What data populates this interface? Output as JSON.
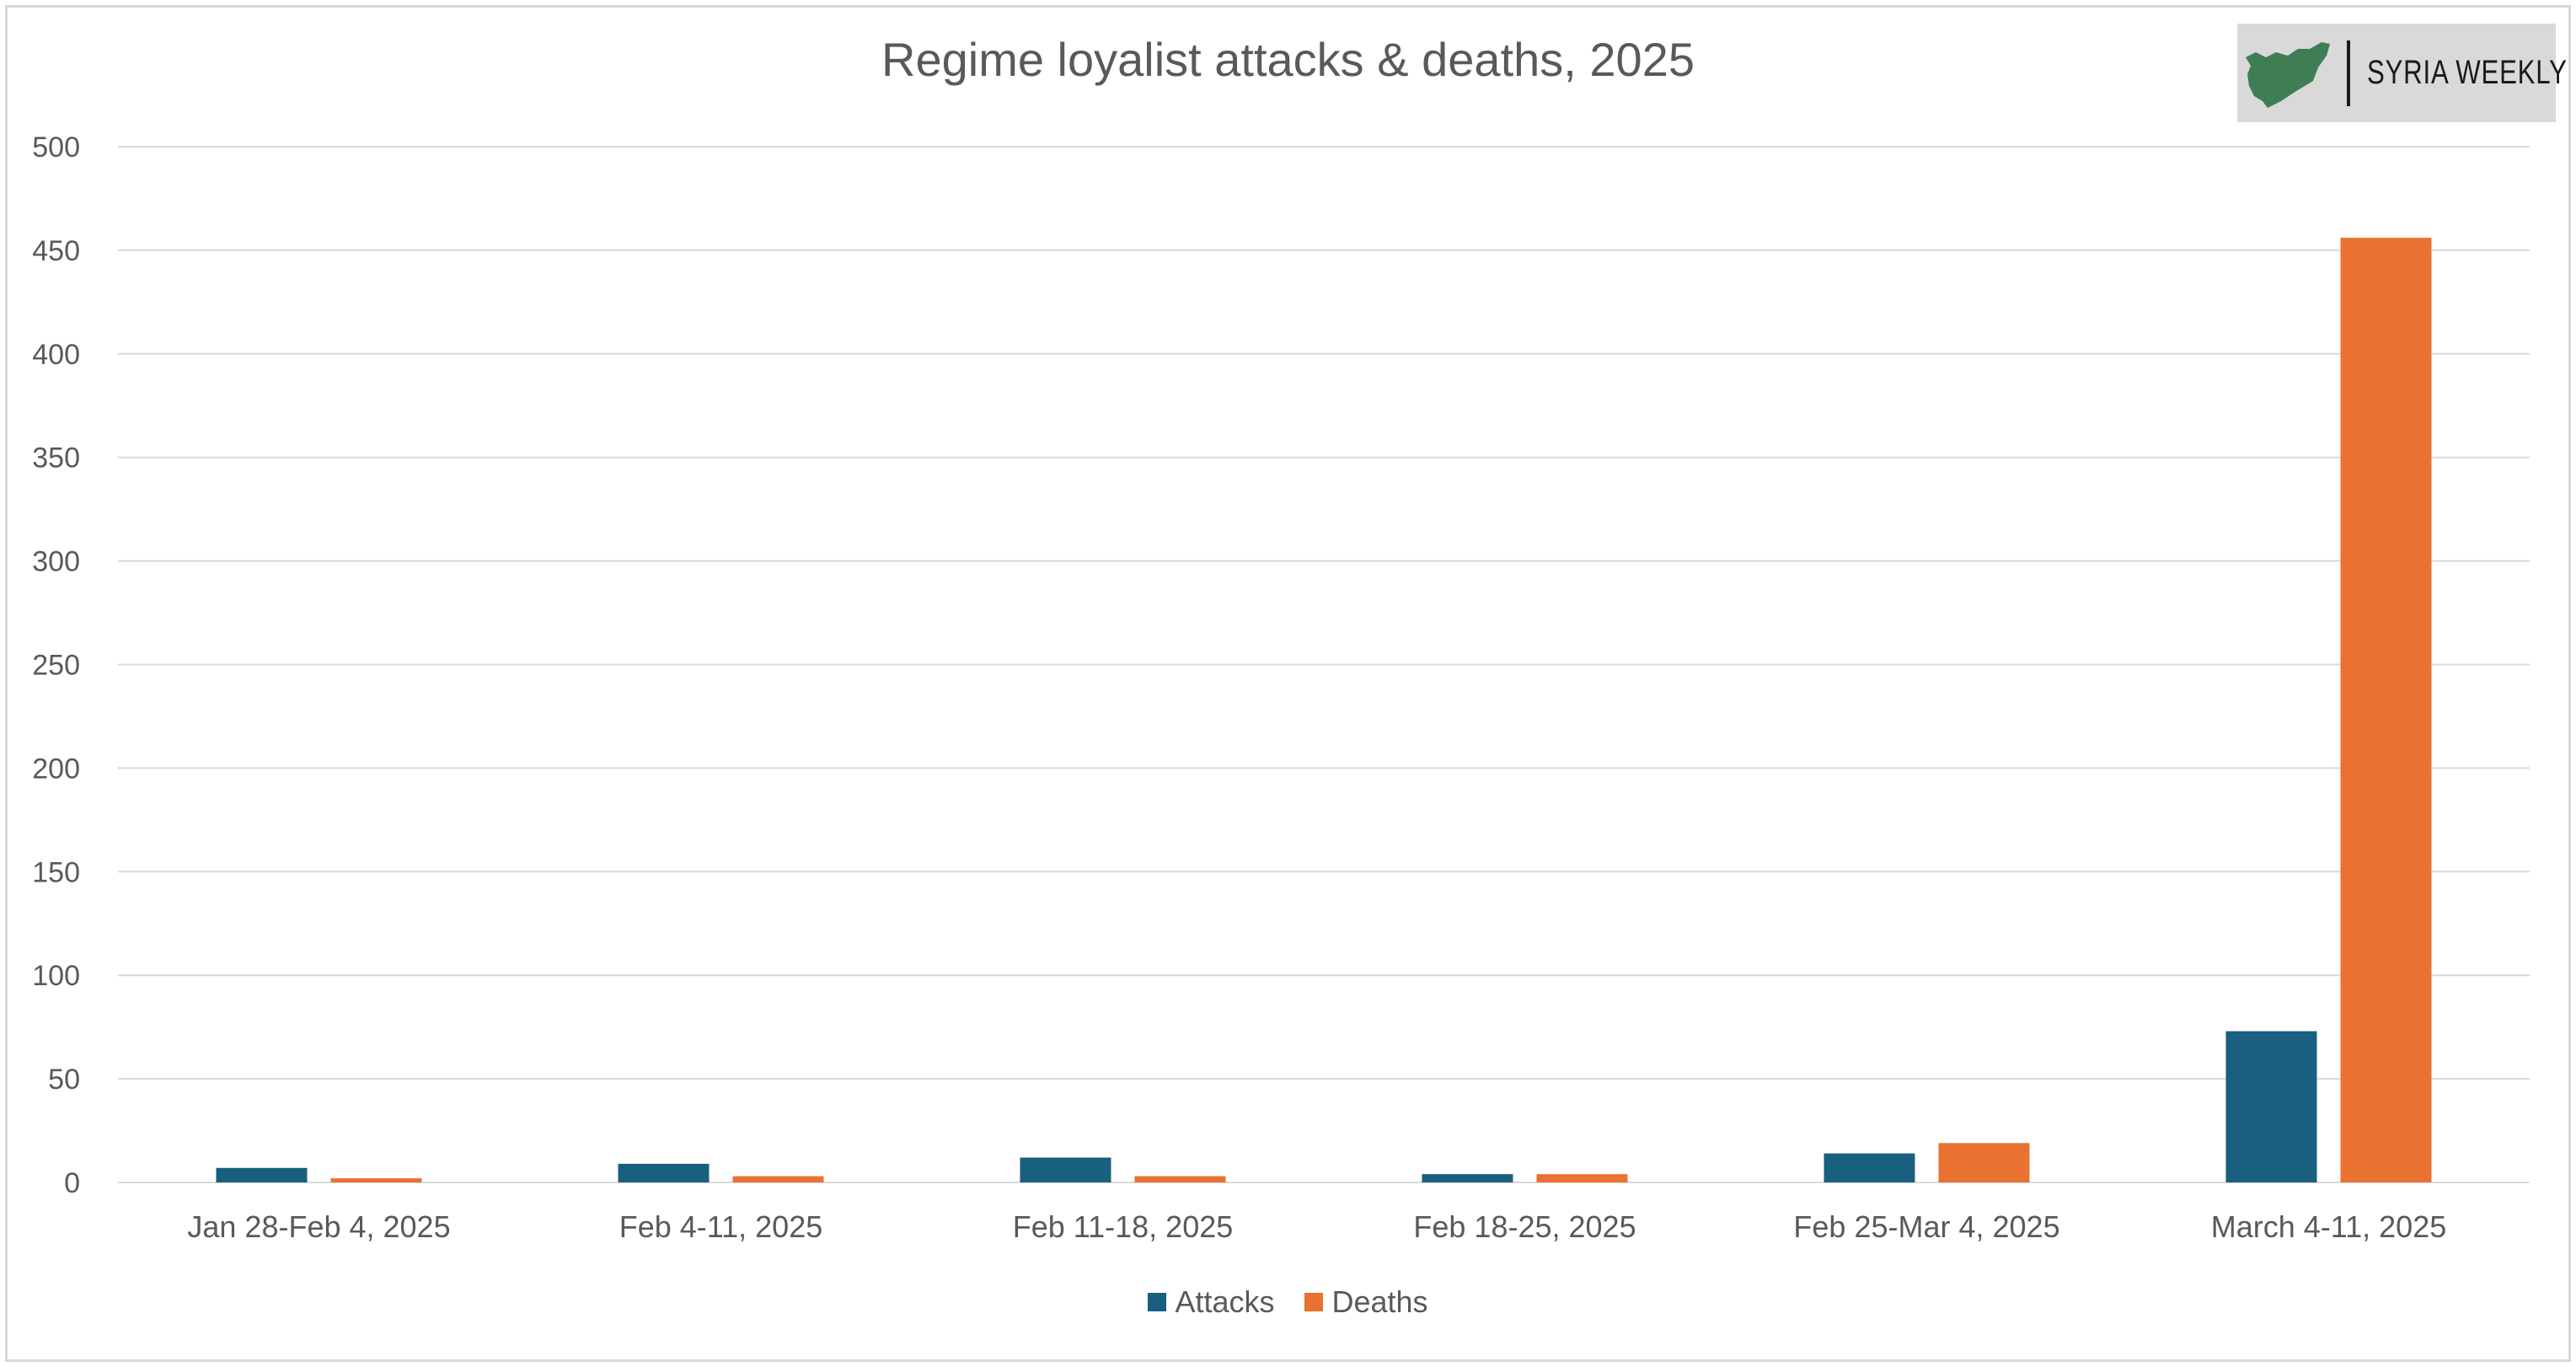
{
  "logo": {
    "text": "SYRIA WEEKLY",
    "map_color": "#3f7d55",
    "background": "#d9d9d9"
  },
  "chart_data": {
    "type": "bar",
    "title": "Regime loyalist attacks & deaths, 2025",
    "xlabel": "",
    "ylabel": "",
    "ylim": [
      0,
      500
    ],
    "yticks": [
      0,
      50,
      100,
      150,
      200,
      250,
      300,
      350,
      400,
      450,
      500
    ],
    "grid": true,
    "legend_position": "bottom",
    "categories": [
      "Jan 28-Feb 4, 2025",
      "Feb 4-11, 2025",
      "Feb 11-18, 2025",
      "Feb 18-25, 2025",
      "Feb 25-Mar 4, 2025",
      "March 4-11, 2025"
    ],
    "series": [
      {
        "name": "Attacks",
        "color": "#185f80",
        "values": [
          7,
          9,
          12,
          4,
          14,
          73
        ]
      },
      {
        "name": "Deaths",
        "color": "#e97132",
        "values": [
          2,
          3,
          3,
          4,
          19,
          456
        ]
      }
    ]
  }
}
